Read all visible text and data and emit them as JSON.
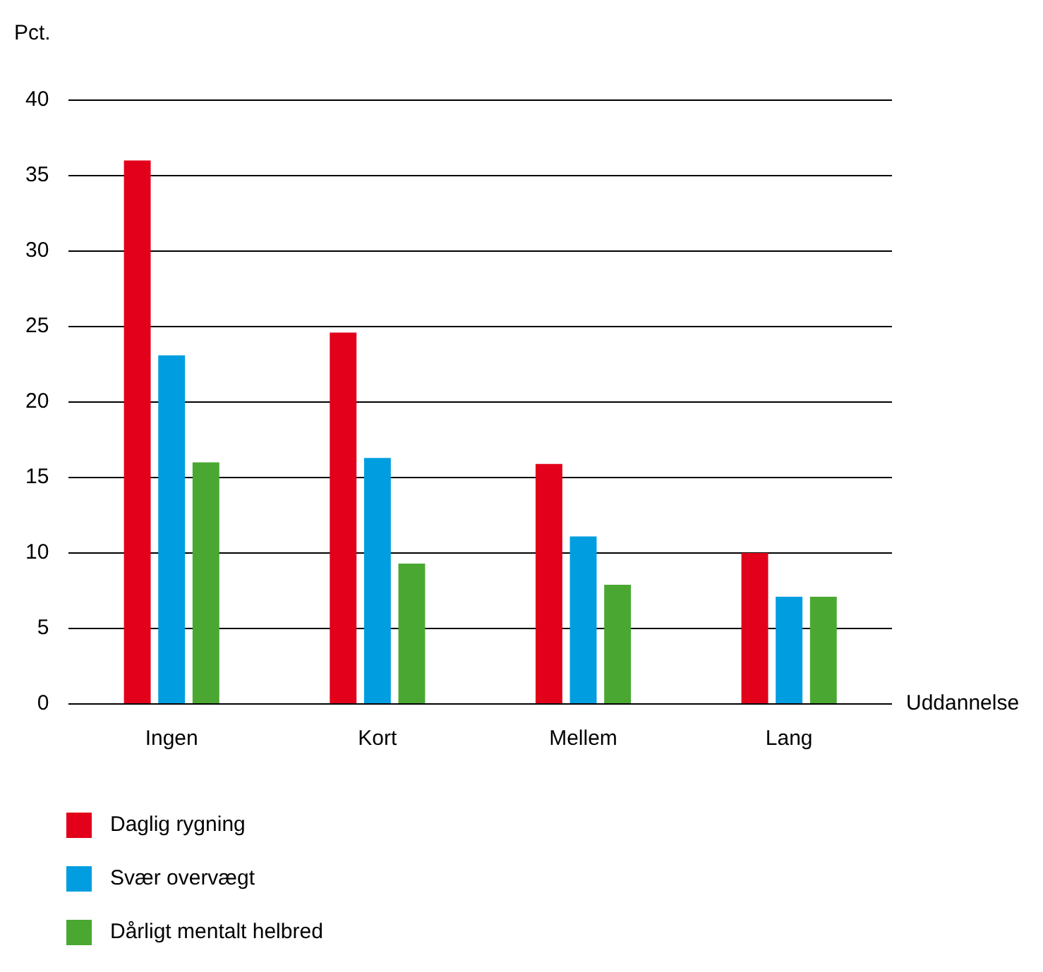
{
  "chart_data": {
    "type": "bar",
    "ylabel": "Pct.",
    "xlabel": "Uddannelse",
    "categories": [
      "Ingen",
      "Kort",
      "Mellem",
      "Lang"
    ],
    "series": [
      {
        "name": "Daglig rygning",
        "color": "#e2001a",
        "values": [
          36,
          24.6,
          15.9,
          10
        ]
      },
      {
        "name": "Svær overvægt",
        "color": "#009ee0",
        "values": [
          23.1,
          16.3,
          11.1,
          7.1
        ]
      },
      {
        "name": "Dårligt mentalt helbred",
        "color": "#4aa832",
        "values": [
          16,
          9.3,
          7.9,
          7.1
        ]
      }
    ],
    "ylim": [
      0,
      40
    ],
    "yticks": [
      0,
      5,
      10,
      15,
      20,
      25,
      30,
      35,
      40
    ],
    "grid": "y",
    "legend": "bottom"
  }
}
